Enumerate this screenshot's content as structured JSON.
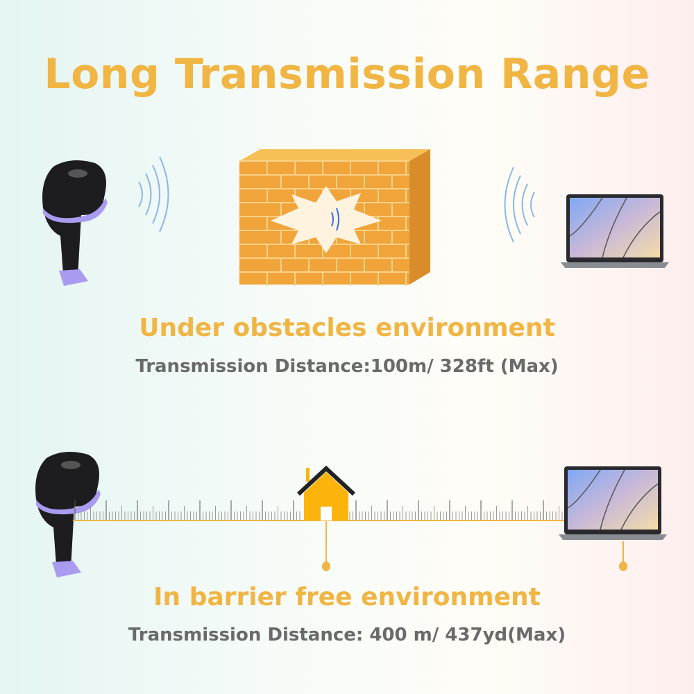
{
  "title": "Long Transmission Range",
  "obstacle_section": {
    "heading": "Under obstacles environment",
    "distance": "Transmission Distance:100m/ 328ft (Max)"
  },
  "barrier_free_section": {
    "heading": "In barrier free environment",
    "distance": "Transmission Distance: 400 m/ 437yd(Max)"
  },
  "colors": {
    "accent": "#f0b543",
    "text": "#6a6a6a",
    "scanner_trim": "#a99bf0",
    "brick": "#f0a43a"
  },
  "icons": [
    "barcode-scanner",
    "signal-waves",
    "brick-wall",
    "laptop",
    "house",
    "ruler"
  ]
}
